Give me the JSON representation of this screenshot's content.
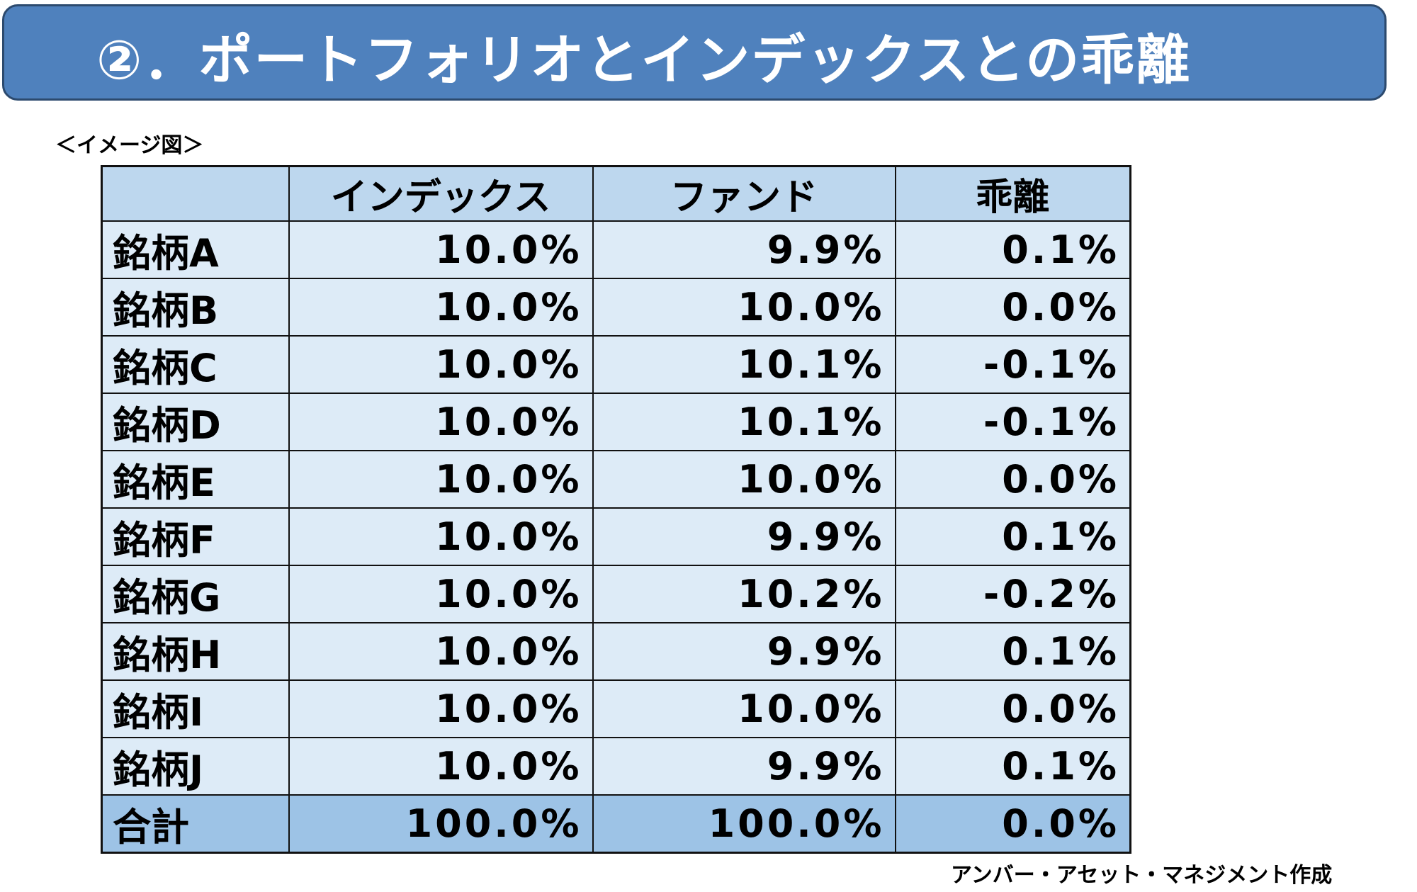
{
  "title": "②．ポートフォリオとインデックスとの乖離",
  "subtitle": "＜イメージ図＞",
  "table": {
    "headers": [
      "",
      "インデックス",
      "ファンド",
      "乖離"
    ],
    "rows": [
      [
        "銘柄A",
        "10.0%",
        "9.9%",
        "0.1%"
      ],
      [
        "銘柄B",
        "10.0%",
        "10.0%",
        "0.0%"
      ],
      [
        "銘柄C",
        "10.0%",
        "10.1%",
        "-0.1%"
      ],
      [
        "銘柄D",
        "10.0%",
        "10.1%",
        "-0.1%"
      ],
      [
        "銘柄E",
        "10.0%",
        "10.0%",
        "0.0%"
      ],
      [
        "銘柄F",
        "10.0%",
        "9.9%",
        "0.1%"
      ],
      [
        "銘柄G",
        "10.0%",
        "10.2%",
        "-0.2%"
      ],
      [
        "銘柄H",
        "10.0%",
        "9.9%",
        "0.1%"
      ],
      [
        "銘柄I",
        "10.0%",
        "10.0%",
        "0.0%"
      ],
      [
        "銘柄J",
        "10.0%",
        "9.9%",
        "0.1%"
      ]
    ],
    "total": [
      "合計",
      "100.0%",
      "100.0%",
      "0.0%"
    ]
  },
  "footer": "アンバー・アセット・マネジメント作成",
  "colors": {
    "title_bg": "#4f81bd",
    "header_bg": "#bdd7ee",
    "row_bg": "#ddebf7",
    "total_bg": "#9dc3e6"
  }
}
